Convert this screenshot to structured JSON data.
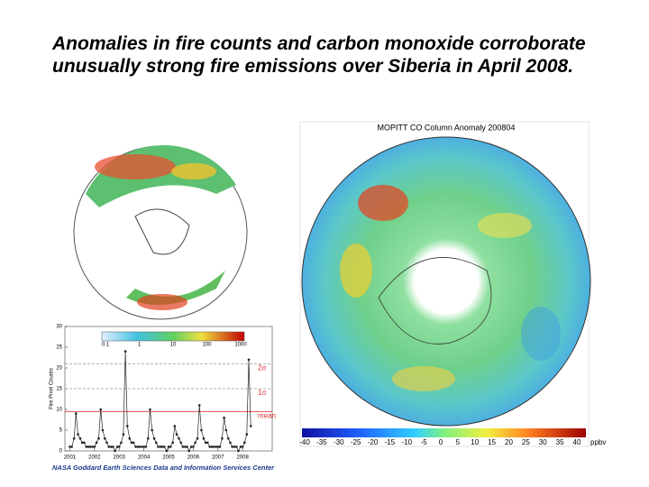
{
  "title": "Anomalies in fire counts and carbon monoxide corroborate unusually strong fire emissions over Siberia in April 2008.",
  "left_map": {
    "colorbar_ticks": [
      0.1,
      1,
      10,
      100,
      1000
    ]
  },
  "right_map": {
    "title": "MOPITT CO Column Anomaly 200804",
    "colorbar_ticks": [
      -40,
      -35,
      -30,
      -25,
      -20,
      -15,
      -10,
      -5,
      0,
      5,
      10,
      15,
      20,
      25,
      30,
      35,
      40
    ],
    "unit": "ppbv"
  },
  "chart_data": {
    "type": "line",
    "ylabel": "Fire Pixel Counts",
    "color": "#222222",
    "x": [
      2001.0,
      2001.08,
      2001.17,
      2001.25,
      2001.33,
      2001.42,
      2001.5,
      2001.58,
      2001.67,
      2001.75,
      2001.83,
      2001.92,
      2002.0,
      2002.08,
      2002.17,
      2002.25,
      2002.33,
      2002.42,
      2002.5,
      2002.58,
      2002.67,
      2002.75,
      2002.83,
      2002.92,
      2003.0,
      2003.08,
      2003.17,
      2003.25,
      2003.33,
      2003.42,
      2003.5,
      2003.58,
      2003.67,
      2003.75,
      2003.83,
      2003.92,
      2004.0,
      2004.08,
      2004.17,
      2004.25,
      2004.33,
      2004.42,
      2004.5,
      2004.58,
      2004.67,
      2004.75,
      2004.83,
      2004.92,
      2005.0,
      2005.08,
      2005.17,
      2005.25,
      2005.33,
      2005.42,
      2005.5,
      2005.58,
      2005.67,
      2005.75,
      2005.83,
      2005.92,
      2006.0,
      2006.08,
      2006.17,
      2006.25,
      2006.33,
      2006.42,
      2006.5,
      2006.58,
      2006.67,
      2006.75,
      2006.83,
      2006.92,
      2007.0,
      2007.08,
      2007.17,
      2007.25,
      2007.33,
      2007.42,
      2007.5,
      2007.58,
      2007.67,
      2007.75,
      2007.83,
      2007.92,
      2008.0,
      2008.08,
      2008.17,
      2008.25,
      2008.33
    ],
    "values": [
      1,
      1,
      3,
      9,
      4,
      3,
      2,
      2,
      1,
      1,
      1,
      1,
      1,
      2,
      3,
      10,
      5,
      3,
      2,
      1,
      1,
      1,
      0,
      1,
      1,
      2,
      4,
      24,
      6,
      3,
      2,
      2,
      1,
      1,
      1,
      1,
      1,
      1,
      3,
      10,
      5,
      3,
      2,
      1,
      1,
      1,
      1,
      0,
      1,
      1,
      2,
      6,
      4,
      3,
      2,
      1,
      1,
      1,
      0,
      1,
      1,
      2,
      3,
      11,
      5,
      3,
      2,
      2,
      1,
      1,
      1,
      1,
      1,
      1,
      3,
      8,
      5,
      3,
      2,
      1,
      1,
      1,
      0,
      1,
      1,
      2,
      4,
      22,
      6
    ],
    "xlim": [
      2000.8,
      2009.2
    ],
    "xticks": [
      2001,
      2002,
      2003,
      2004,
      2005,
      2006,
      2007,
      2008
    ],
    "ylim": [
      0,
      30
    ],
    "yticks": [
      0,
      5,
      10,
      15,
      20,
      25,
      30
    ],
    "reference_lines": [
      {
        "label": "mean",
        "value": 9.5,
        "color": "#e03030"
      },
      {
        "label": "1σ",
        "value": 15,
        "color": "#999999"
      },
      {
        "label": "2σ",
        "value": 21,
        "color": "#999999"
      }
    ]
  },
  "footer": "NASA Goddard Earth Sciences Data and Information Services Center"
}
